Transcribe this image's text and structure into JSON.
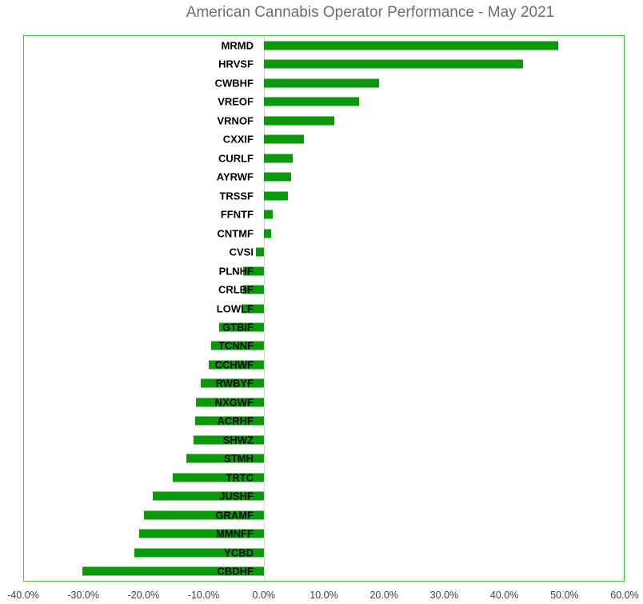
{
  "chart_data": {
    "type": "bar",
    "orientation": "horizontal",
    "title": "American Cannabis Operator Performance - May 2021",
    "categories": [
      "MRMD",
      "HRVSF",
      "CWBHF",
      "VREOF",
      "VRNOF",
      "CXXIF",
      "CURLF",
      "AYRWF",
      "TRSSF",
      "FFNTF",
      "CNTMF",
      "CVSI",
      "PLNHF",
      "CRLBF",
      "LOWLF",
      "GTBIF",
      "TCNNF",
      "CCHWF",
      "RWBYF",
      "NXGWF",
      "ACRHF",
      "SHWZ",
      "STMH",
      "TRTC",
      "JUSHF",
      "GRAMF",
      "MMNFF",
      "YCBD",
      "CBDHF"
    ],
    "values": [
      49.0,
      43.2,
      19.2,
      15.8,
      11.7,
      6.7,
      4.8,
      4.5,
      4.0,
      1.5,
      1.2,
      -1.3,
      -3.4,
      -3.5,
      -3.7,
      -7.5,
      -8.8,
      -9.2,
      -10.5,
      -11.3,
      -11.5,
      -11.7,
      -12.9,
      -15.2,
      -18.5,
      -20.0,
      -20.8,
      -21.6,
      -30.3
    ],
    "value_unit": "%",
    "xlabel": "",
    "ylabel": "",
    "xlim": [
      -40,
      60
    ],
    "x_ticks": [
      "-40.0%",
      "-30.0%",
      "-20.0%",
      "-10.0%",
      "0.0%",
      "10.0%",
      "20.0%",
      "30.0%",
      "40.0%",
      "50.0%",
      "60.0%"
    ],
    "grid": false,
    "legend": "none",
    "colors": {
      "bar": "#0a990a",
      "plot_border": "#3cc43c",
      "zero_axis": "#d6d6d6",
      "title_text": "#6e6e6e",
      "tick_text": "#404040",
      "category_text": "#000000"
    }
  }
}
